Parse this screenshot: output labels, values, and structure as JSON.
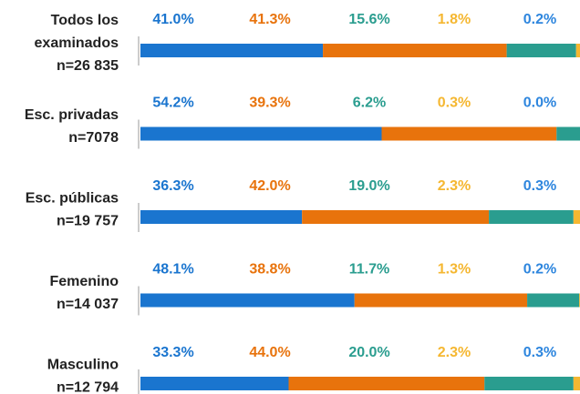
{
  "chart_data": {
    "type": "stacked-bar-horizontal",
    "categories": [
      [
        "Todos los",
        "examinados",
        "n=26 835"
      ],
      [
        "Esc. privadas",
        "n=7078"
      ],
      [
        "Esc. públicas",
        "n=19 757"
      ],
      [
        "Femenino",
        "n=14 037"
      ],
      [
        "Masculino",
        "n=12 794"
      ]
    ],
    "xlim": [
      0,
      100
    ],
    "series": [
      {
        "color": "#1a75cf",
        "values": [
          41.0,
          54.2,
          36.3,
          48.1,
          33.3
        ],
        "value_labels": [
          "41.0%",
          "54.2%",
          "36.3%",
          "48.1%",
          "33.3%"
        ]
      },
      {
        "color": "#e8730c",
        "values": [
          41.3,
          39.3,
          42.0,
          38.8,
          44.0
        ],
        "value_labels": [
          "41.3%",
          "39.3%",
          "42.0%",
          "38.8%",
          "44.0%"
        ]
      },
      {
        "color": "#2a9d8f",
        "values": [
          15.6,
          6.2,
          19.0,
          11.7,
          20.0
        ],
        "value_labels": [
          "15.6%",
          "6.2%",
          "19.0%",
          "11.7%",
          "20.0%"
        ]
      },
      {
        "color": "#f5b731",
        "values": [
          1.8,
          0.3,
          2.3,
          1.3,
          2.3
        ],
        "value_labels": [
          "1.8%",
          "0.3%",
          "2.3%",
          "1.3%",
          "2.3%"
        ]
      },
      {
        "color": "#2e86de",
        "values": [
          0.2,
          0.0,
          0.3,
          0.2,
          0.3
        ],
        "value_labels": [
          "0.2%",
          "0.0%",
          "0.3%",
          "0.2%",
          "0.3%"
        ]
      }
    ]
  }
}
